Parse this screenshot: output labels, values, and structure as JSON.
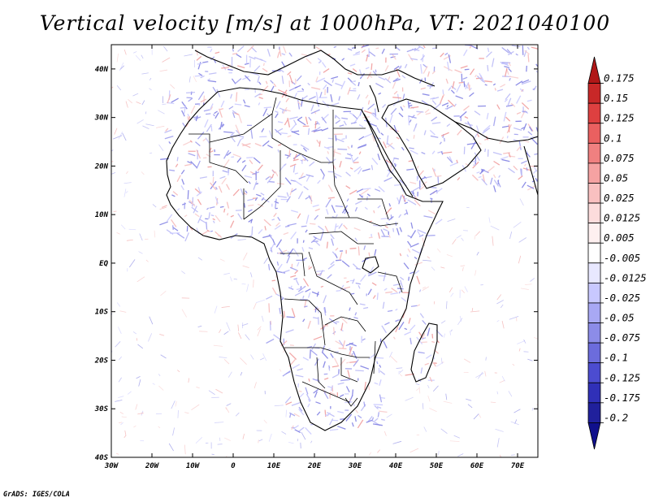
{
  "title": "Vertical velocity [m/s] at 1000hPa, VT: 2021040100",
  "credit": "GrADS: IGES/COLA",
  "map": {
    "lon_range": [
      -30,
      75
    ],
    "lat_range": [
      -40,
      45
    ],
    "x_ticks": [
      "30W",
      "20W",
      "10W",
      "0",
      "10E",
      "20E",
      "30E",
      "40E",
      "50E",
      "60E",
      "70E"
    ],
    "y_ticks": [
      "40N",
      "30N",
      "20N",
      "10N",
      "EQ",
      "10S",
      "20S",
      "30S",
      "40S"
    ]
  },
  "legend": {
    "labels": [
      "0.175",
      "0.15",
      "0.125",
      "0.1",
      "0.075",
      "0.05",
      "0.025",
      "0.0125",
      "0.005",
      "-0.005",
      "-0.0125",
      "-0.025",
      "-0.05",
      "-0.075",
      "-0.1",
      "-0.125",
      "-0.175",
      "-0.2"
    ],
    "colors": [
      "#b01818",
      "#c82828",
      "#de4040",
      "#ea6060",
      "#f08080",
      "#f5a2a2",
      "#f9c0c0",
      "#fcdcdc",
      "#fef0f0",
      "#ffffff",
      "#e8e8ff",
      "#c8c8ff",
      "#a8a8f4",
      "#8c8ce8",
      "#6c6cdc",
      "#4c4cd0",
      "#3030b8",
      "#20209c",
      "#10108c"
    ]
  }
}
